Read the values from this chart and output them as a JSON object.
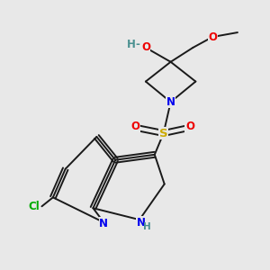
{
  "bg_color": "#e8e8e8",
  "bond_color": "#1a1a1a",
  "colors": {
    "N": "#0000ee",
    "O": "#ee0000",
    "S": "#ccaa00",
    "Cl": "#00aa00",
    "H_O": "#4a9090",
    "C": "#1a1a1a"
  },
  "font_size": 8.5,
  "line_width": 1.4
}
